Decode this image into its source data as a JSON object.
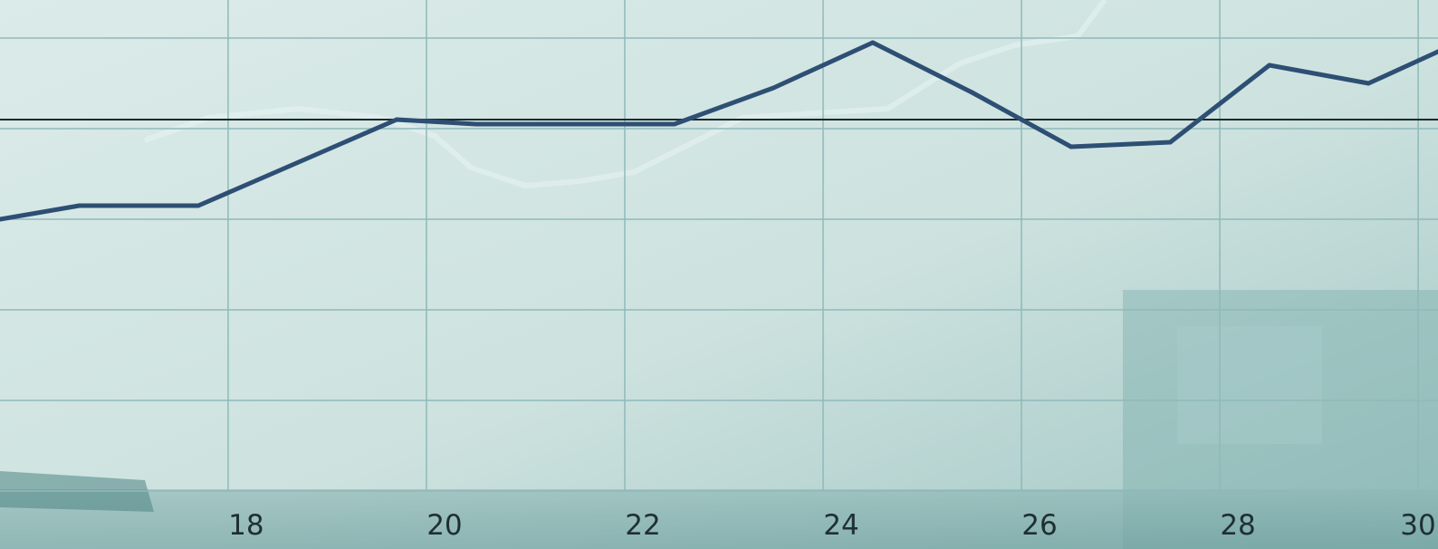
{
  "chart_data": {
    "type": "line",
    "title": "",
    "xlabel": "",
    "ylabel": "",
    "x_ticks": [
      18,
      20,
      22,
      24,
      26,
      28,
      30
    ],
    "xlim": [
      15.7,
      30.2
    ],
    "ylim": [
      0,
      5.3
    ],
    "grid": true,
    "y_gridlines": [
      0,
      1,
      2,
      3,
      4,
      5
    ],
    "reference_line": 4.1,
    "series": [
      {
        "color": "#2e4f74",
        "x": [
          15.7,
          16.5,
          17.7,
          19.7,
          20.5,
          21.5,
          22.5,
          23.5,
          24.5,
          25.5,
          26.5,
          27.5,
          28.5,
          29.5,
          30.2
        ],
        "y": [
          3.0,
          3.15,
          3.15,
          4.1,
          4.05,
          4.05,
          4.05,
          4.45,
          4.95,
          4.4,
          3.8,
          3.85,
          4.7,
          4.5,
          4.85
        ]
      }
    ],
    "colors": {
      "background": "#cfe3e1",
      "grid": "#8fb9b9",
      "reference_line": "#1c2a2e",
      "line": "#2e4f74",
      "tick_text": "#1f2f33"
    }
  }
}
